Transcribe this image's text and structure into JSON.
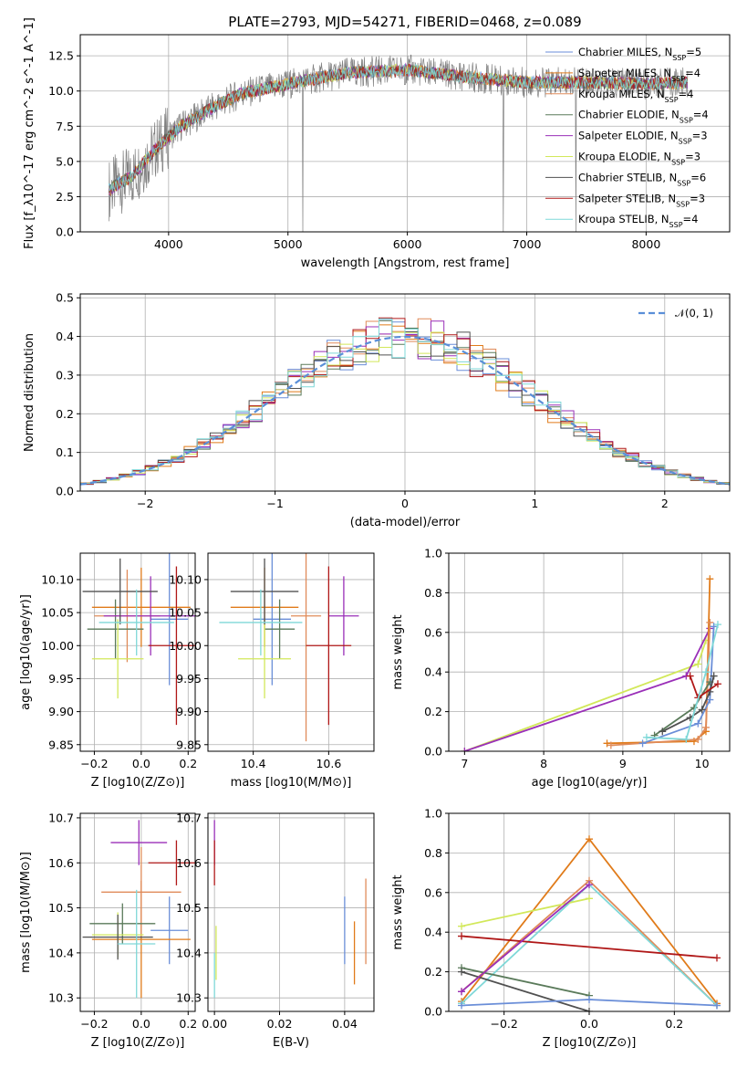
{
  "title": "PLATE=2793, MJD=54271, FIBERID=0468, z=0.089",
  "colors": {
    "Chabrier MILES": "#6a8ed8",
    "Salpeter MILES": "#e07b1a",
    "Kroupa MILES": "#e08b5a",
    "Chabrier ELODIE": "#5a7a5a",
    "Salpeter ELODIE": "#9a2fb8",
    "Kroupa ELODIE": "#d2e85a",
    "Chabrier STELIB": "#505050",
    "Salpeter STELIB": "#b01818",
    "Kroupa STELIB": "#7fd8d8",
    "Kroupa MILES line": "#e88ac8",
    "data": "#808080",
    "gauss": "#5a8fd8"
  },
  "chart_data": [
    {
      "panel": "spectrum",
      "type": "line",
      "xlabel": "wavelength [Angstrom, rest frame]",
      "ylabel": "Flux [f_λ10^-17 erg cm^-2 s^-1 A^-1]",
      "xlim": [
        3260,
        8700
      ],
      "ylim": [
        0,
        14
      ],
      "xticks": [
        "4000",
        "5000",
        "6000",
        "7000",
        "8000"
      ],
      "yticks": [
        "0.0",
        "2.5",
        "5.0",
        "7.5",
        "10.0",
        "12.5"
      ],
      "legend": [
        {
          "base": "Chabrier MILES",
          "n": "5"
        },
        {
          "base": "Salpeter MILES",
          "n": "4"
        },
        {
          "base": "Kroupa MILES",
          "n": "4"
        },
        {
          "base": "Chabrier ELODIE",
          "n": "4"
        },
        {
          "base": "Salpeter ELODIE",
          "n": "3"
        },
        {
          "base": "Kroupa ELODIE",
          "n": "3"
        },
        {
          "base": "Chabrier STELIB",
          "n": "6"
        },
        {
          "base": "Salpeter STELIB",
          "n": "3"
        },
        {
          "base": "Kroupa STELIB",
          "n": "4"
        }
      ],
      "continuum": [
        [
          3500,
          3.0
        ],
        [
          3700,
          4.0
        ],
        [
          3900,
          6.0
        ],
        [
          4100,
          7.5
        ],
        [
          4300,
          8.5
        ],
        [
          4600,
          9.8
        ],
        [
          5000,
          10.5
        ],
        [
          5500,
          11.3
        ],
        [
          6000,
          11.5
        ],
        [
          6500,
          11.0
        ],
        [
          7000,
          10.6
        ],
        [
          7500,
          10.6
        ],
        [
          8000,
          10.5
        ],
        [
          8300,
          10.6
        ]
      ]
    },
    {
      "panel": "residuals",
      "type": "bar",
      "xlabel": "(data-model)/error",
      "ylabel": "Normed distribution",
      "xlim": [
        -2.5,
        2.5
      ],
      "ylim": [
        0,
        0.51
      ],
      "xticks": [
        "−2",
        "−1",
        "0",
        "1",
        "2"
      ],
      "yticks": [
        "0.0",
        "0.1",
        "0.2",
        "0.3",
        "0.4",
        "0.5"
      ],
      "legend": "𝒩(0, 1)",
      "bin_width": 0.1
    },
    {
      "panel": "age_vs_Z",
      "type": "scatter",
      "xlabel": "Z [log10(Z/Z⊙)]",
      "ylabel": "age  [log10(age/yr)]",
      "xlim": [
        -0.26,
        0.23
      ],
      "ylim": [
        9.84,
        10.14
      ],
      "xticks": [
        "−0.2",
        "0.0",
        "0.2"
      ],
      "yticks": [
        "9.85",
        "9.90",
        "9.95",
        "10.00",
        "10.05",
        "10.10"
      ],
      "points": [
        {
          "series": "Chabrier MILES",
          "x": 0.12,
          "y": 10.04,
          "xerr": 0.08,
          "yerr": 0.1
        },
        {
          "series": "Salpeter MILES",
          "x": 0.0,
          "y": 10.058,
          "xerr": 0.21,
          "yerr": 0.06
        },
        {
          "series": "Kroupa MILES",
          "x": -0.06,
          "y": 10.045,
          "xerr": 0.14,
          "yerr": 0.07
        },
        {
          "series": "Chabrier ELODIE",
          "x": -0.11,
          "y": 10.025,
          "xerr": 0.12,
          "yerr": 0.045
        },
        {
          "series": "Salpeter ELODIE",
          "x": 0.04,
          "y": 10.045,
          "xerr": 0.2,
          "yerr": 0.06
        },
        {
          "series": "Kroupa ELODIE",
          "x": -0.1,
          "y": 9.98,
          "xerr": 0.11,
          "yerr": 0.06
        },
        {
          "series": "Chabrier STELIB",
          "x": -0.09,
          "y": 10.082,
          "xerr": 0.16,
          "yerr": 0.05
        },
        {
          "series": "Salpeter STELIB",
          "x": 0.15,
          "y": 10.0,
          "xerr": 0.12,
          "yerr": 0.12
        },
        {
          "series": "Kroupa STELIB",
          "x": -0.02,
          "y": 10.035,
          "xerr": 0.16,
          "yerr": 0.05
        }
      ]
    },
    {
      "panel": "age_vs_mass",
      "type": "scatter",
      "xlabel": "mass [log10(M/M⊙)]",
      "ylabel": "",
      "xlim": [
        10.28,
        10.72
      ],
      "ylim": [
        9.84,
        10.14
      ],
      "xticks": [
        "10.4",
        "10.6"
      ],
      "yticks": [
        "9.85",
        "9.90",
        "9.95",
        "10.00",
        "10.05",
        "10.10"
      ],
      "points": [
        {
          "series": "Chabrier MILES",
          "x": 10.45,
          "y": 10.04,
          "xerr": 0.05,
          "yerr": 0.1
        },
        {
          "series": "Salpeter MILES",
          "x": 10.43,
          "y": 10.058,
          "xerr": 0.09,
          "yerr": 0.06
        },
        {
          "series": "Kroupa MILES",
          "x": 10.54,
          "y": 10.045,
          "xerr": 0.04,
          "yerr": 0.19
        },
        {
          "series": "Chabrier ELODIE",
          "x": 10.47,
          "y": 10.025,
          "xerr": 0.04,
          "yerr": 0.045
        },
        {
          "series": "Salpeter ELODIE",
          "x": 10.64,
          "y": 10.045,
          "xerr": 0.04,
          "yerr": 0.06
        },
        {
          "series": "Kroupa ELODIE",
          "x": 10.43,
          "y": 9.98,
          "xerr": 0.07,
          "yerr": 0.06
        },
        {
          "series": "Chabrier STELIB",
          "x": 10.43,
          "y": 10.082,
          "xerr": 0.09,
          "yerr": 0.05
        },
        {
          "series": "Salpeter STELIB",
          "x": 10.6,
          "y": 10.0,
          "xerr": 0.06,
          "yerr": 0.12
        },
        {
          "series": "Kroupa STELIB",
          "x": 10.42,
          "y": 10.035,
          "xerr": 0.11,
          "yerr": 0.05
        }
      ]
    },
    {
      "panel": "massweight_vs_age",
      "type": "line",
      "xlabel": "age  [log10(age/yr)]",
      "ylabel": "mass weight",
      "xlim": [
        6.8,
        10.35
      ],
      "ylim": [
        0,
        1.0
      ],
      "xticks": [
        "7",
        "8",
        "9",
        "10"
      ],
      "yticks": [
        "0.0",
        "0.2",
        "0.4",
        "0.6",
        "0.8",
        "1.0"
      ],
      "series": [
        {
          "name": "Kroupa ELODIE",
          "points": [
            [
              7.0,
              0.0
            ],
            [
              9.95,
              0.44
            ],
            [
              10.05,
              0.56
            ]
          ]
        },
        {
          "name": "Salpeter ELODIE",
          "points": [
            [
              7.0,
              0.0
            ],
            [
              9.8,
              0.38
            ],
            [
              10.1,
              0.62
            ]
          ]
        },
        {
          "name": "Salpeter MILES",
          "points": [
            [
              8.8,
              0.04
            ],
            [
              9.9,
              0.05
            ],
            [
              10.05,
              0.1
            ],
            [
              10.1,
              0.87
            ]
          ]
        },
        {
          "name": "Kroupa MILES",
          "points": [
            [
              8.85,
              0.03
            ],
            [
              9.95,
              0.06
            ],
            [
              10.05,
              0.12
            ],
            [
              10.1,
              0.65
            ]
          ]
        },
        {
          "name": "Chabrier MILES",
          "points": [
            [
              9.25,
              0.04
            ],
            [
              9.95,
              0.14
            ],
            [
              10.1,
              0.26
            ],
            [
              10.15,
              0.63
            ]
          ]
        },
        {
          "name": "Chabrier ELODIE",
          "points": [
            [
              9.4,
              0.08
            ],
            [
              9.9,
              0.22
            ],
            [
              10.1,
              0.35
            ]
          ]
        },
        {
          "name": "Chabrier STELIB",
          "points": [
            [
              9.5,
              0.1
            ],
            [
              9.85,
              0.17
            ],
            [
              10.0,
              0.21
            ],
            [
              10.1,
              0.3
            ],
            [
              10.15,
              0.38
            ]
          ]
        },
        {
          "name": "Salpeter STELIB",
          "points": [
            [
              9.85,
              0.38
            ],
            [
              9.95,
              0.27
            ],
            [
              10.2,
              0.34
            ]
          ]
        },
        {
          "name": "Kroupa STELIB",
          "points": [
            [
              9.3,
              0.07
            ],
            [
              9.8,
              0.06
            ],
            [
              10.05,
              0.4
            ],
            [
              10.2,
              0.64
            ]
          ]
        }
      ]
    },
    {
      "panel": "mass_vs_Z",
      "type": "scatter",
      "xlabel": "Z [log10(Z/Z⊙)]",
      "ylabel": "mass [log10(M/M⊙)]",
      "xlim": [
        -0.26,
        0.23
      ],
      "ylim": [
        10.27,
        10.71
      ],
      "xticks": [
        "−0.2",
        "0.0",
        "0.2"
      ],
      "yticks": [
        "10.3",
        "10.4",
        "10.5",
        "10.6",
        "10.7"
      ],
      "points": [
        {
          "series": "Chabrier MILES",
          "x": 0.12,
          "y": 10.45,
          "xerr": 0.08,
          "yerr": 0.075
        },
        {
          "series": "Salpeter MILES",
          "x": 0.0,
          "y": 10.43,
          "xerr": 0.21,
          "yerr": 0.13
        },
        {
          "series": "Kroupa MILES",
          "x": 0.0,
          "y": 10.535,
          "xerr": 0.17,
          "yerr": 0.1
        },
        {
          "series": "Chabrier ELODIE",
          "x": -0.08,
          "y": 10.465,
          "xerr": 0.14,
          "yerr": 0.045
        },
        {
          "series": "Salpeter ELODIE",
          "x": -0.01,
          "y": 10.645,
          "xerr": 0.12,
          "yerr": 0.05
        },
        {
          "series": "Kroupa ELODIE",
          "x": -0.1,
          "y": 10.44,
          "xerr": 0.11,
          "yerr": 0.05
        },
        {
          "series": "Chabrier STELIB",
          "x": -0.1,
          "y": 10.435,
          "xerr": 0.15,
          "yerr": 0.05
        },
        {
          "series": "Salpeter STELIB",
          "x": 0.15,
          "y": 10.6,
          "xerr": 0.12,
          "yerr": 0.05
        },
        {
          "series": "Kroupa STELIB",
          "x": -0.02,
          "y": 10.42,
          "xerr": 0.08,
          "yerr": 0.12
        }
      ]
    },
    {
      "panel": "mass_vs_EBV",
      "type": "scatter",
      "xlabel": "E(B-V)",
      "ylabel": "",
      "xlim": [
        -0.002,
        0.049
      ],
      "ylim": [
        10.27,
        10.71
      ],
      "xticks": [
        "0.00",
        "0.02",
        "0.04"
      ],
      "yticks": [
        "10.3",
        "10.4",
        "10.5",
        "10.6",
        "10.7"
      ],
      "points": [
        {
          "series": "Chabrier MILES",
          "x": 0.04,
          "y": 10.45,
          "xerr": 0.0,
          "yerr": 0.075
        },
        {
          "series": "Salpeter MILES",
          "x": 0.043,
          "y": 10.4,
          "xerr": 0.0,
          "yerr": 0.07
        },
        {
          "series": "Kroupa MILES",
          "x": 0.0465,
          "y": 10.47,
          "xerr": 0.0,
          "yerr": 0.095
        },
        {
          "series": "Salpeter ELODIE",
          "x": 0.0,
          "y": 10.645,
          "xerr": 0.0,
          "yerr": 0.05
        },
        {
          "series": "Salpeter STELIB",
          "x": 0.0,
          "y": 10.6,
          "xerr": 0.0,
          "yerr": 0.05
        },
        {
          "series": "Kroupa ELODIE",
          "x": 0.0005,
          "y": 10.4,
          "xerr": 0.0,
          "yerr": 0.06
        },
        {
          "series": "Kroupa STELIB",
          "x": 0.0,
          "y": 10.35,
          "xerr": 0.0,
          "yerr": 0.05
        }
      ]
    },
    {
      "panel": "massweight_vs_Z",
      "type": "line",
      "xlabel": "Z [log10(Z/Z⊙)]",
      "ylabel": "mass weight",
      "xlim": [
        -0.33,
        0.33
      ],
      "ylim": [
        0,
        1.0
      ],
      "xticks": [
        "−0.2",
        "0.0",
        "0.2"
      ],
      "yticks": [
        "0.0",
        "0.2",
        "0.4",
        "0.6",
        "0.8",
        "1.0"
      ],
      "series": [
        {
          "name": "Salpeter MILES",
          "points": [
            [
              -0.3,
              0.05
            ],
            [
              0.0,
              0.87
            ],
            [
              0.3,
              0.04
            ]
          ]
        },
        {
          "name": "Kroupa MILES",
          "points": [
            [
              -0.3,
              0.1
            ],
            [
              0.0,
              0.66
            ],
            [
              0.3,
              0.03
            ]
          ]
        },
        {
          "name": "Kroupa STELIB",
          "points": [
            [
              -0.3,
              0.04
            ],
            [
              0.0,
              0.64
            ],
            [
              0.3,
              0.03
            ]
          ]
        },
        {
          "name": "Kroupa ELODIE",
          "points": [
            [
              -0.3,
              0.43
            ],
            [
              0.0,
              0.57
            ]
          ]
        },
        {
          "name": "Salpeter STELIB",
          "points": [
            [
              -0.3,
              0.38
            ],
            [
              0.3,
              0.27
            ]
          ]
        },
        {
          "name": "Chabrier ELODIE",
          "points": [
            [
              -0.3,
              0.22
            ],
            [
              0.0,
              0.08
            ]
          ]
        },
        {
          "name": "Chabrier STELIB",
          "points": [
            [
              -0.3,
              0.2
            ],
            [
              0.0,
              0.0
            ]
          ]
        },
        {
          "name": "Chabrier MILES",
          "points": [
            [
              -0.3,
              0.03
            ],
            [
              0.0,
              0.06
            ],
            [
              0.3,
              0.03
            ]
          ]
        },
        {
          "name": "Salpeter ELODIE",
          "points": [
            [
              -0.3,
              0.1
            ],
            [
              0.0,
              0.64
            ]
          ]
        }
      ]
    }
  ]
}
